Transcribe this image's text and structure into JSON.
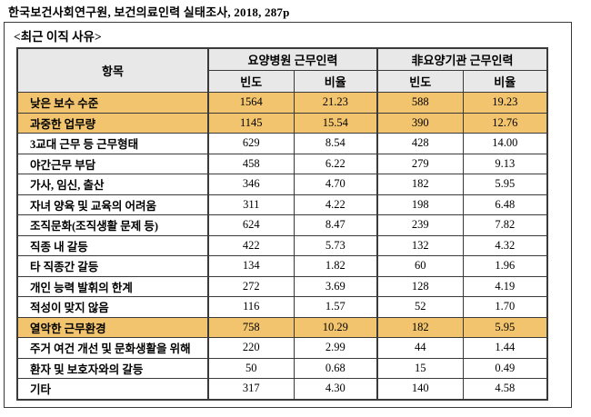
{
  "source_caption": "한국보건사회연구원, 보건의료인력 실태조사, 2018, 287p",
  "panel": {
    "title": "<최근 이직 사유>"
  },
  "colors": {
    "header_bg": "#e8e8e8",
    "highlight_bg": "#f2c46d",
    "border": "#3a3a3a"
  },
  "table": {
    "item_header": "항목",
    "groups": [
      {
        "label": "요양병원 근무인력"
      },
      {
        "label": "非요양기관 근무인력"
      }
    ],
    "sub_headers": [
      "빈도",
      "비율",
      "빈도",
      "비율"
    ],
    "rows": [
      {
        "label": "낮은 보수 수준",
        "cells": [
          "1564",
          "21.23",
          "588",
          "19.23"
        ],
        "highlight": true
      },
      {
        "label": "과중한 업무량",
        "cells": [
          "1145",
          "15.54",
          "390",
          "12.76"
        ],
        "highlight": true
      },
      {
        "label": "3교대 근무 등 근무형태",
        "cells": [
          "629",
          "8.54",
          "428",
          "14.00"
        ],
        "highlight": false
      },
      {
        "label": "야간근무 부담",
        "cells": [
          "458",
          "6.22",
          "279",
          "9.13"
        ],
        "highlight": false
      },
      {
        "label": "가사, 임신, 출산",
        "cells": [
          "346",
          "4.70",
          "182",
          "5.95"
        ],
        "highlight": false
      },
      {
        "label": "자녀 양육 및 교육의 어려움",
        "cells": [
          "311",
          "4.22",
          "198",
          "6.48"
        ],
        "highlight": false
      },
      {
        "label": "조직문화(조직생활 문제 등)",
        "cells": [
          "624",
          "8.47",
          "239",
          "7.82"
        ],
        "highlight": false
      },
      {
        "label": "직종 내 갈등",
        "cells": [
          "422",
          "5.73",
          "132",
          "4.32"
        ],
        "highlight": false
      },
      {
        "label": "타 직종간 갈등",
        "cells": [
          "134",
          "1.82",
          "60",
          "1.96"
        ],
        "highlight": false
      },
      {
        "label": "개인 능력 발휘의 한계",
        "cells": [
          "272",
          "3.69",
          "128",
          "4.19"
        ],
        "highlight": false
      },
      {
        "label": "적성이 맞지 않음",
        "cells": [
          "116",
          "1.57",
          "52",
          "1.70"
        ],
        "highlight": false
      },
      {
        "label": "열악한 근무환경",
        "cells": [
          "758",
          "10.29",
          "182",
          "5.95"
        ],
        "highlight": true
      },
      {
        "label": "주거 여건 개선 및 문화생활을 위해",
        "cells": [
          "220",
          "2.99",
          "44",
          "1.44"
        ],
        "highlight": false
      },
      {
        "label": "환자 및 보호자와의 갈등",
        "cells": [
          "50",
          "0.68",
          "15",
          "0.49"
        ],
        "highlight": false
      },
      {
        "label": "기타",
        "cells": [
          "317",
          "4.30",
          "140",
          "4.58"
        ],
        "highlight": false
      }
    ]
  }
}
